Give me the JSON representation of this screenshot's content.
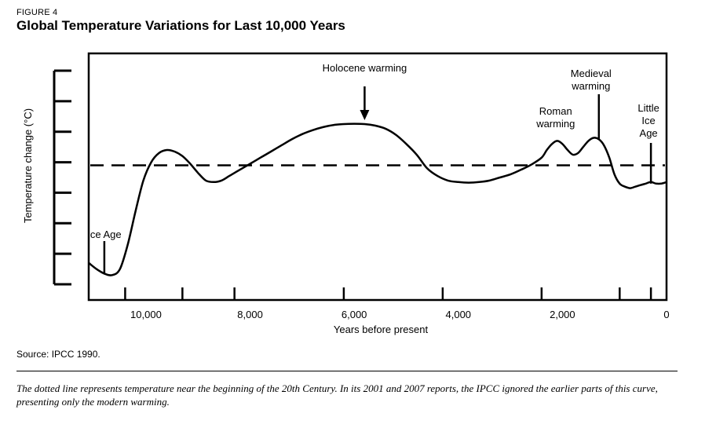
{
  "figure": {
    "label": "FIGURE 4",
    "title": "Global Temperature Variations for Last 10,000 Years"
  },
  "source": "Source: IPCC 1990.",
  "caption": "The dotted line represents temperature near the beginning of the 20th Century. In its 2001 and 2007 reports, the IPCC ignored the earlier parts of this curve, presenting only the modern warming.",
  "chart_data": {
    "type": "line",
    "title": "Global Temperature Variations for Last 10,000 Years",
    "xlabel": "Years before present",
    "ylabel": "Temperature change (°C)",
    "x_reversed": true,
    "xlim": [
      11100,
      0
    ],
    "ylim": [
      0,
      7
    ],
    "x_ticks": [
      10000,
      8000,
      6000,
      4000,
      2000,
      0
    ],
    "x_tick_labels": [
      "10,000",
      "8,000",
      "6,000",
      "4,000",
      "2,000",
      "0"
    ],
    "x_minor_ticks": [
      10400,
      9300,
      8300,
      6200,
      4300,
      2400,
      900,
      300
    ],
    "y_ticks": [
      0,
      1,
      2,
      3,
      4,
      5,
      6,
      7
    ],
    "y_tick_labels": [],
    "baseline": 3.9,
    "series": [
      {
        "x": [
          11100,
          10950,
          10800,
          10650,
          10500,
          10350,
          10200,
          10050,
          9900,
          9750,
          9600,
          9450,
          9300,
          9150,
          9000,
          8850,
          8700,
          8550,
          8400,
          8250,
          8100,
          7950,
          7800,
          7600,
          7400,
          7200,
          7000,
          6800,
          6600,
          6400,
          6200,
          6000,
          5800,
          5600,
          5400,
          5200,
          5000,
          4800,
          4600,
          4400,
          4200,
          4000,
          3800,
          3600,
          3400,
          3200,
          3000,
          2800,
          2600,
          2400,
          2300,
          2200,
          2100,
          2000,
          1900,
          1800,
          1700,
          1600,
          1500,
          1400,
          1300,
          1200,
          1100,
          1000,
          900,
          800,
          700,
          600,
          500,
          400,
          300,
          200,
          100,
          0
        ],
        "y": [
          0.7,
          0.5,
          0.35,
          0.3,
          0.5,
          1.3,
          2.4,
          3.4,
          4.0,
          4.3,
          4.4,
          4.35,
          4.2,
          3.95,
          3.65,
          3.4,
          3.35,
          3.4,
          3.55,
          3.7,
          3.85,
          4.0,
          4.15,
          4.35,
          4.55,
          4.75,
          4.92,
          5.05,
          5.15,
          5.22,
          5.25,
          5.26,
          5.25,
          5.2,
          5.1,
          4.9,
          4.6,
          4.25,
          3.8,
          3.55,
          3.4,
          3.35,
          3.33,
          3.35,
          3.4,
          3.5,
          3.6,
          3.75,
          3.92,
          4.15,
          4.4,
          4.6,
          4.7,
          4.6,
          4.4,
          4.25,
          4.3,
          4.5,
          4.7,
          4.8,
          4.75,
          4.55,
          4.15,
          3.6,
          3.3,
          3.2,
          3.15,
          3.2,
          3.25,
          3.3,
          3.35,
          3.3,
          3.3,
          3.35
        ]
      }
    ],
    "annotations": [
      {
        "text": "Ice Age",
        "x": 10800,
        "lines": [
          "Ice Age"
        ]
      },
      {
        "text": "Holocene warming",
        "x": 5800,
        "lines": [
          "Holocene warming"
        ]
      },
      {
        "text": "Roman warming",
        "x": 2100,
        "lines": [
          "Roman",
          "warming"
        ]
      },
      {
        "text": "Medieval warming",
        "x": 1300,
        "lines": [
          "Medieval",
          "warming"
        ]
      },
      {
        "text": "Little Ice Age",
        "x": 300,
        "lines": [
          "Little",
          "Ice",
          "Age"
        ]
      }
    ]
  }
}
